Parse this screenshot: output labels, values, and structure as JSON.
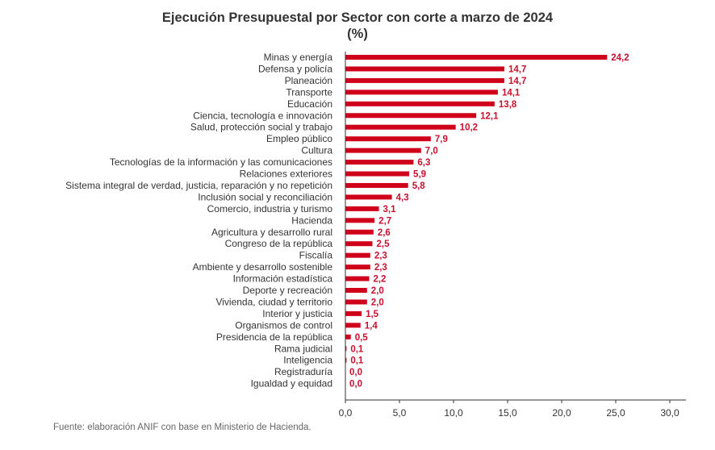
{
  "chart_data": {
    "type": "bar",
    "orientation": "horizontal",
    "title": "Ejecución Presupuestal por Sector con corte a marzo de 2024",
    "subtitle": "(%)",
    "categories": [
      "Minas y energía",
      "Defensa y policía",
      "Planeación",
      "Transporte",
      "Educación",
      "Ciencia, tecnología e innovación",
      "Salud, protección social y trabajo",
      "Empleo público",
      "Cultura",
      "Tecnologías de la información y las comunicaciones",
      "Relaciones exteriores",
      "Sistema integral de verdad, justicia, reparación y no repetición",
      "Inclusión social y reconciliación",
      "Comercio, industria y turismo",
      "Hacienda",
      "Agricultura y desarrollo rural",
      "Congreso de la república",
      "Fiscalía",
      "Ambiente y desarrollo sostenible",
      "Información estadística",
      "Deporte y recreación",
      "Vivienda, ciudad y territorio",
      "Interior y justicia",
      "Organismos de control",
      "Presidencia de la república",
      "Rama judicial",
      "Inteligencia",
      "Registraduría",
      "Igualdad y equidad"
    ],
    "values": [
      24.2,
      14.7,
      14.7,
      14.1,
      13.8,
      12.1,
      10.2,
      7.9,
      7.0,
      6.3,
      5.9,
      5.8,
      4.3,
      3.1,
      2.7,
      2.6,
      2.5,
      2.3,
      2.3,
      2.2,
      2.0,
      2.0,
      1.5,
      1.4,
      0.5,
      0.1,
      0.1,
      0.0,
      0.0
    ],
    "value_labels": [
      "24,2",
      "14,7",
      "14,7",
      "14,1",
      "13,8",
      "12,1",
      "10,2",
      "7,9",
      "7,0",
      "6,3",
      "5,9",
      "5,8",
      "4,3",
      "3,1",
      "2,7",
      "2,6",
      "2,5",
      "2,3",
      "2,3",
      "2,2",
      "2,0",
      "2,0",
      "1,5",
      "1,4",
      "0,5",
      "0,1",
      "0,1",
      "0,0",
      "0,0"
    ],
    "xlim": [
      0,
      30
    ],
    "xticks": [
      0,
      5,
      10,
      15,
      20,
      25,
      30
    ],
    "xtick_labels": [
      "0,0",
      "5,0",
      "10,0",
      "15,0",
      "20,0",
      "25,0",
      "30,0"
    ],
    "grid": false,
    "bar_color": "#d0021b",
    "label_color": "#c8102e"
  },
  "source": "Fuente: elaboración ANIF con base en Ministerio de Hacienda."
}
